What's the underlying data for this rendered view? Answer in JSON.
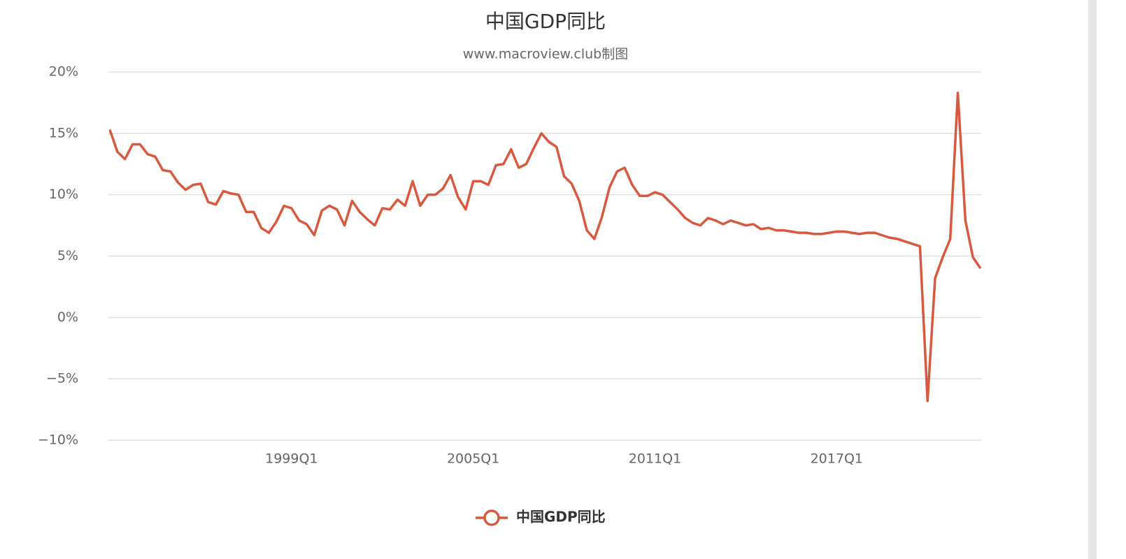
{
  "chart_data": {
    "type": "line",
    "title": "中国GDP同比",
    "subtitle": "www.macroview.club制图",
    "categories": [
      null,
      null,
      null,
      null,
      null,
      null,
      null,
      null,
      null,
      null,
      null,
      null,
      null,
      null,
      null,
      null,
      null,
      null,
      null,
      null,
      null,
      null,
      null,
      null,
      "1999Q1",
      null,
      null,
      null,
      null,
      null,
      null,
      null,
      null,
      null,
      null,
      null,
      null,
      null,
      null,
      null,
      null,
      null,
      null,
      null,
      null,
      null,
      null,
      null,
      "2005Q1",
      null,
      null,
      null,
      null,
      null,
      null,
      null,
      null,
      null,
      null,
      null,
      null,
      null,
      null,
      null,
      null,
      null,
      null,
      null,
      null,
      null,
      null,
      null,
      "2011Q1",
      null,
      null,
      null,
      null,
      null,
      null,
      null,
      null,
      null,
      null,
      null,
      null,
      null,
      null,
      null,
      null,
      null,
      null,
      null,
      null,
      null,
      null,
      null,
      "2017Q1",
      null,
      null,
      null,
      null,
      null,
      null,
      null,
      null,
      null,
      null,
      null,
      null,
      null,
      null,
      null,
      null,
      null,
      null,
      null
    ],
    "series": [
      {
        "name": "中国GDP同比",
        "color": "#d9593f",
        "values": [
          15.3,
          13.5,
          12.9,
          14.1,
          14.1,
          13.3,
          13.1,
          12.0,
          11.9,
          11.0,
          10.4,
          10.8,
          10.9,
          9.4,
          9.2,
          10.3,
          10.1,
          10.0,
          8.6,
          8.6,
          7.3,
          6.9,
          7.8,
          9.1,
          8.9,
          7.9,
          7.6,
          6.7,
          8.7,
          9.1,
          8.8,
          7.5,
          9.5,
          8.6,
          8.0,
          7.5,
          8.9,
          8.8,
          9.6,
          9.1,
          11.1,
          9.1,
          10.0,
          10.0,
          10.5,
          11.6,
          9.8,
          8.8,
          11.1,
          11.1,
          10.8,
          12.4,
          12.5,
          13.7,
          12.2,
          12.5,
          13.8,
          15.0,
          14.3,
          13.9,
          11.5,
          10.9,
          9.5,
          7.1,
          6.4,
          8.2,
          10.6,
          11.9,
          12.2,
          10.8,
          9.9,
          9.9,
          10.2,
          10.0,
          9.4,
          8.8,
          8.1,
          7.7,
          7.5,
          8.1,
          7.9,
          7.6,
          7.9,
          7.7,
          7.5,
          7.6,
          7.2,
          7.3,
          7.1,
          7.1,
          7.0,
          6.9,
          6.9,
          6.8,
          6.8,
          6.9,
          7.0,
          7.0,
          6.9,
          6.8,
          6.9,
          6.9,
          6.7,
          6.5,
          6.4,
          6.2,
          6.0,
          5.8,
          -6.8,
          3.2,
          4.9,
          6.4,
          18.3,
          7.9,
          4.9,
          4.0
        ]
      }
    ],
    "ylim": [
      -10,
      20
    ],
    "yticks": [
      {
        "value": -10,
        "label": "−10%"
      },
      {
        "value": -5,
        "label": "−5%"
      },
      {
        "value": 0,
        "label": "0%"
      },
      {
        "value": 5,
        "label": "5%"
      },
      {
        "value": 10,
        "label": "10%"
      },
      {
        "value": 15,
        "label": "15%"
      },
      {
        "value": 20,
        "label": "20%"
      }
    ],
    "grid": true,
    "legend": "bottom"
  }
}
